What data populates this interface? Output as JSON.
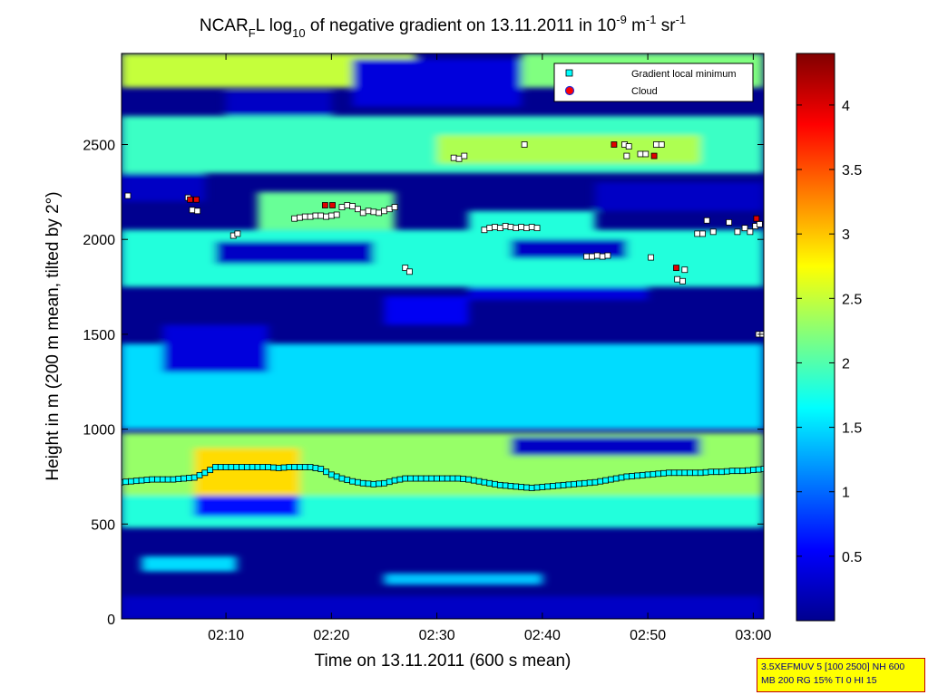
{
  "chart_data": {
    "type": "heatmap",
    "title": {
      "p1": "NCAR",
      "p1_sub": "F",
      "p2": "L log",
      "p2_sub": "10",
      "p3": " of negative gradient on 13.11.2011 in 10",
      "p3_sup": "-9",
      "p4": " m",
      "p4_sup": "-1",
      "p5": " sr",
      "p5_sup": "-1"
    },
    "xlabel": "Time on 13.11.2011 (600 s mean)",
    "ylabel": "Height in m (200 m mean, tilted by 2°)",
    "x_tick_labels": [
      "02:10",
      "02:20",
      "02:30",
      "02:40",
      "02:50",
      "03:00"
    ],
    "x_ticks_min": [
      10,
      20,
      30,
      40,
      50,
      60
    ],
    "xlim_min": [
      0.1,
      61.0
    ],
    "y_ticks": [
      0,
      500,
      1000,
      1500,
      2000,
      2500
    ],
    "ylim": [
      0,
      2980
    ],
    "colorbar": {
      "ticks": [
        0.5,
        1,
        1.5,
        2,
        2.5,
        3,
        3.5,
        4
      ],
      "range": [
        0,
        4.4
      ],
      "colormap": "jet"
    },
    "legend": {
      "placement": "top-right",
      "entries": [
        {
          "label": "Gradient local minimum",
          "marker": "square",
          "color": "#00ffff"
        },
        {
          "label": "Cloud",
          "marker": "circle",
          "color": "#ff0000"
        }
      ]
    },
    "bands": [
      {
        "x": [
          0,
          61
        ],
        "y": [
          0,
          120
        ],
        "v": 0.3
      },
      {
        "x": [
          2,
          11
        ],
        "y": [
          250,
          330
        ],
        "v": 1.5
      },
      {
        "x": [
          25,
          40
        ],
        "y": [
          180,
          240
        ],
        "v": 1.4
      },
      {
        "x": [
          0,
          61
        ],
        "y": [
          480,
          700
        ],
        "v": 1.8
      },
      {
        "x": [
          7,
          17
        ],
        "y": [
          540,
          650
        ],
        "v": 0.6
      },
      {
        "x": [
          0,
          61
        ],
        "y": [
          650,
          980
        ],
        "v": 2.3
      },
      {
        "x": [
          7,
          17
        ],
        "y": [
          650,
          900
        ],
        "v": 2.9
      },
      {
        "x": [
          37,
          55
        ],
        "y": [
          860,
          960
        ],
        "v": 0.3
      },
      {
        "x": [
          0,
          61
        ],
        "y": [
          1000,
          1450
        ],
        "v": 1.5
      },
      {
        "x": [
          4,
          14
        ],
        "y": [
          1300,
          1550
        ],
        "v": 0.4
      },
      {
        "x": [
          25,
          33
        ],
        "y": [
          1550,
          1700
        ],
        "v": 0.5
      },
      {
        "x": [
          33,
          50
        ],
        "y": [
          1680,
          1820
        ],
        "v": 0.4
      },
      {
        "x": [
          0,
          61
        ],
        "y": [
          1750,
          2050
        ],
        "v": 1.8
      },
      {
        "x": [
          13,
          26
        ],
        "y": [
          2050,
          2250
        ],
        "v": 2.1
      },
      {
        "x": [
          33,
          45
        ],
        "y": [
          2020,
          2150
        ],
        "v": 1.8
      },
      {
        "x": [
          0,
          61
        ],
        "y": [
          2350,
          2650
        ],
        "v": 1.9
      },
      {
        "x": [
          30,
          55
        ],
        "y": [
          2400,
          2550
        ],
        "v": 2.4
      },
      {
        "x": [
          0,
          28
        ],
        "y": [
          2800,
          2980
        ],
        "v": 2.5
      },
      {
        "x": [
          38,
          61
        ],
        "y": [
          2800,
          2980
        ],
        "v": 2.2
      },
      {
        "x": [
          10,
          20
        ],
        "y": [
          2650,
          2780
        ],
        "v": 0.3
      },
      {
        "x": [
          22,
          38
        ],
        "y": [
          2700,
          2950
        ],
        "v": 0.4
      },
      {
        "x": [
          0,
          8
        ],
        "y": [
          2200,
          2350
        ],
        "v": 0.3
      },
      {
        "x": [
          45,
          61
        ],
        "y": [
          2150,
          2300
        ],
        "v": 0.3
      },
      {
        "x": [
          9,
          24
        ],
        "y": [
          1870,
          1990
        ],
        "v": 0.3
      },
      {
        "x": [
          37,
          48
        ],
        "y": [
          1900,
          2000
        ],
        "v": 0.3
      }
    ],
    "gradient_minimum_x": [
      0,
      1,
      2,
      3,
      4,
      5,
      6,
      7,
      8,
      9,
      10,
      11,
      12,
      13,
      14,
      15,
      16,
      17,
      18,
      19,
      20,
      21,
      22,
      23,
      24,
      25,
      26,
      27,
      28,
      29,
      30,
      31,
      32,
      33,
      34,
      35,
      36,
      37,
      38,
      39,
      40,
      41,
      42,
      43,
      44,
      45,
      46,
      47,
      48,
      49,
      50,
      51,
      52,
      53,
      54,
      55,
      56,
      57,
      58,
      59,
      60,
      61
    ],
    "gradient_minimum_y": [
      720,
      725,
      730,
      735,
      735,
      735,
      740,
      745,
      770,
      800,
      800,
      800,
      800,
      800,
      800,
      795,
      800,
      800,
      800,
      790,
      760,
      740,
      725,
      715,
      710,
      715,
      730,
      740,
      740,
      740,
      740,
      740,
      740,
      735,
      725,
      715,
      705,
      700,
      695,
      690,
      695,
      700,
      705,
      710,
      715,
      720,
      730,
      740,
      750,
      755,
      760,
      765,
      770,
      770,
      770,
      770,
      775,
      775,
      780,
      780,
      785,
      790
    ],
    "upper_points": [
      {
        "x": 0.7,
        "y": 2230
      },
      {
        "x": 6.4,
        "y": 2220
      },
      {
        "x": 6.8,
        "y": 2155
      },
      {
        "x": 7.3,
        "y": 2150
      },
      {
        "x": 10.7,
        "y": 2020
      },
      {
        "x": 11.1,
        "y": 2030
      },
      {
        "x": 16.5,
        "y": 2110
      },
      {
        "x": 17.0,
        "y": 2115
      },
      {
        "x": 17.5,
        "y": 2120
      },
      {
        "x": 18.0,
        "y": 2120
      },
      {
        "x": 18.5,
        "y": 2125
      },
      {
        "x": 19.0,
        "y": 2125
      },
      {
        "x": 19.5,
        "y": 2120
      },
      {
        "x": 20.0,
        "y": 2125
      },
      {
        "x": 20.5,
        "y": 2130
      },
      {
        "x": 21.0,
        "y": 2170
      },
      {
        "x": 21.5,
        "y": 2180
      },
      {
        "x": 22.0,
        "y": 2175
      },
      {
        "x": 22.5,
        "y": 2160
      },
      {
        "x": 23.0,
        "y": 2140
      },
      {
        "x": 23.5,
        "y": 2150
      },
      {
        "x": 24.0,
        "y": 2145
      },
      {
        "x": 24.5,
        "y": 2140
      },
      {
        "x": 25.0,
        "y": 2150
      },
      {
        "x": 25.5,
        "y": 2160
      },
      {
        "x": 26.0,
        "y": 2170
      },
      {
        "x": 27.0,
        "y": 1850
      },
      {
        "x": 27.4,
        "y": 1830
      },
      {
        "x": 31.6,
        "y": 2430
      },
      {
        "x": 32.1,
        "y": 2425
      },
      {
        "x": 32.6,
        "y": 2440
      },
      {
        "x": 34.5,
        "y": 2050
      },
      {
        "x": 35.0,
        "y": 2060
      },
      {
        "x": 35.5,
        "y": 2065
      },
      {
        "x": 36.0,
        "y": 2060
      },
      {
        "x": 36.5,
        "y": 2070
      },
      {
        "x": 37.0,
        "y": 2065
      },
      {
        "x": 37.5,
        "y": 2060
      },
      {
        "x": 38.0,
        "y": 2065
      },
      {
        "x": 38.5,
        "y": 2060
      },
      {
        "x": 39.0,
        "y": 2065
      },
      {
        "x": 39.5,
        "y": 2060
      },
      {
        "x": 38.3,
        "y": 2500
      },
      {
        "x": 44.2,
        "y": 1910
      },
      {
        "x": 44.7,
        "y": 1910
      },
      {
        "x": 45.2,
        "y": 1915
      },
      {
        "x": 45.7,
        "y": 1910
      },
      {
        "x": 46.2,
        "y": 1915
      },
      {
        "x": 47.8,
        "y": 2500
      },
      {
        "x": 48.2,
        "y": 2490
      },
      {
        "x": 48.0,
        "y": 2440
      },
      {
        "x": 49.3,
        "y": 2450
      },
      {
        "x": 49.8,
        "y": 2450
      },
      {
        "x": 50.3,
        "y": 1905
      },
      {
        "x": 50.8,
        "y": 2500
      },
      {
        "x": 51.3,
        "y": 2500
      },
      {
        "x": 52.8,
        "y": 1790
      },
      {
        "x": 53.3,
        "y": 1780
      },
      {
        "x": 53.5,
        "y": 1840
      },
      {
        "x": 54.7,
        "y": 2030
      },
      {
        "x": 55.2,
        "y": 2030
      },
      {
        "x": 55.6,
        "y": 2100
      },
      {
        "x": 56.2,
        "y": 2040
      },
      {
        "x": 57.7,
        "y": 2090
      },
      {
        "x": 58.5,
        "y": 2040
      },
      {
        "x": 59.2,
        "y": 2060
      },
      {
        "x": 59.7,
        "y": 2040
      },
      {
        "x": 60.2,
        "y": 2070
      },
      {
        "x": 60.6,
        "y": 2080
      },
      {
        "x": 60.5,
        "y": 1500
      },
      {
        "x": 60.9,
        "y": 1500
      },
      {
        "x": 61.3,
        "y": 1500
      }
    ],
    "cloud_points": [
      {
        "x": 6.6,
        "y": 2210
      },
      {
        "x": 7.2,
        "y": 2210
      },
      {
        "x": 19.4,
        "y": 2180
      },
      {
        "x": 20.1,
        "y": 2180
      },
      {
        "x": 46.8,
        "y": 2500
      },
      {
        "x": 50.6,
        "y": 2440
      },
      {
        "x": 52.7,
        "y": 1850
      },
      {
        "x": 60.3,
        "y": 2110
      }
    ]
  },
  "info_box": {
    "line1": "3.5XEFMUV 5 [100 2500] NH 600",
    "line2": "MB 200 RG 15% TI 0 HI 15"
  }
}
